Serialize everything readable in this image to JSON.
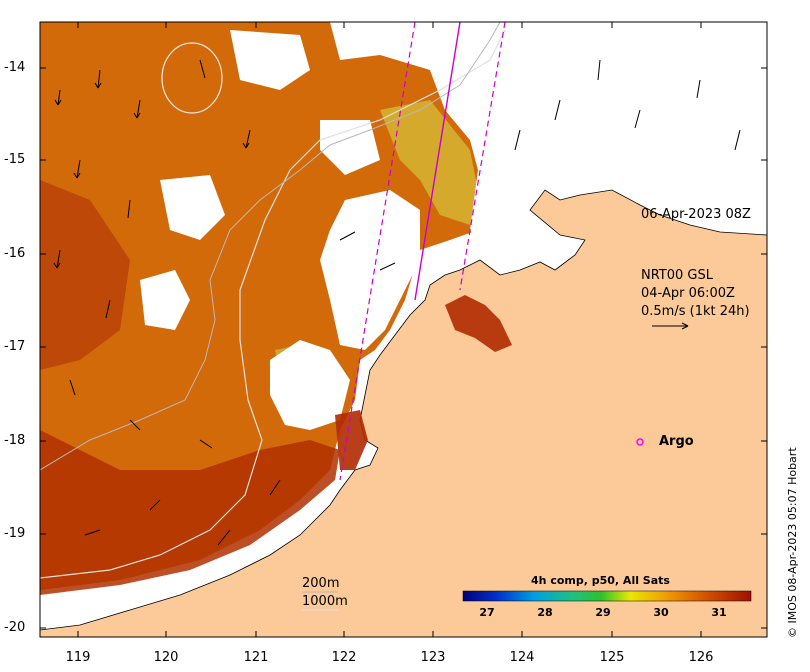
{
  "timestamp_label": "06-Apr-2023 08Z",
  "currents": {
    "line1": "NRT00 GSL",
    "line2": "04-Apr 06:00Z",
    "line3": "0.5m/s (1kt 24h)"
  },
  "argo_label": "Argo",
  "contours": {
    "c200": "200m",
    "c1000": "1000m"
  },
  "colorbar": {
    "title": "4h comp, p50, All Sats",
    "ticks": [
      "27",
      "28",
      "29",
      "30",
      "31"
    ]
  },
  "credit": "© IMOS 08-Apr-2023 05:07 Hobart",
  "y_ticks": [
    "-14",
    "-15",
    "-16",
    "-17",
    "-18",
    "-19",
    "-20"
  ],
  "x_ticks": [
    "119",
    "120",
    "121",
    "122",
    "123",
    "124",
    "125",
    "126"
  ],
  "colors": {
    "land": "#fcc998",
    "sst_warm": "#b52d00",
    "sst_mid": "#e67a0f",
    "sst_cool": "#d4c030",
    "argo": "#ff00ff",
    "track": "#cc00cc"
  }
}
